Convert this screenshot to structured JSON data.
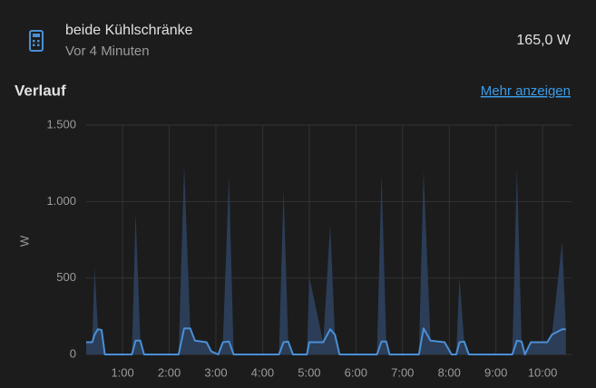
{
  "header": {
    "title": "beide Kühlschränke",
    "subtitle": "Vor 4 Minuten",
    "state": "165,0 W"
  },
  "history": {
    "title": "Verlauf",
    "link": "Mehr anzeigen"
  },
  "chart_data": {
    "type": "line",
    "ylabel": "W",
    "x": [
      0.22,
      0.35,
      0.4,
      0.47,
      0.55,
      0.62,
      1.2,
      1.28,
      1.38,
      1.46,
      2.2,
      2.32,
      2.45,
      2.55,
      2.8,
      2.9,
      3.05,
      3.15,
      3.28,
      3.38,
      4.35,
      4.45,
      4.55,
      4.65,
      4.95,
      5.0,
      5.3,
      5.45,
      5.55,
      5.65,
      6.45,
      6.55,
      6.65,
      6.72,
      7.35,
      7.45,
      7.6,
      7.9,
      8.05,
      8.15,
      8.22,
      8.32,
      8.42,
      9.35,
      9.45,
      9.55,
      9.62,
      9.75,
      10.1,
      10.2,
      10.42,
      10.5
    ],
    "series": [
      {
        "color": "#2b3d57",
        "fill": true,
        "values": [
          80,
          90,
          570,
          170,
          160,
          0,
          0,
          930,
          90,
          0,
          0,
          1240,
          170,
          90,
          80,
          20,
          0,
          80,
          1170,
          0,
          0,
          1080,
          85,
          0,
          0,
          510,
          80,
          850,
          130,
          0,
          0,
          1180,
          85,
          0,
          0,
          1200,
          90,
          80,
          0,
          0,
          500,
          85,
          0,
          0,
          1220,
          85,
          0,
          80,
          80,
          130,
          740,
          165
        ]
      },
      {
        "color": "#4a8fd6",
        "values": [
          80,
          80,
          130,
          165,
          160,
          0,
          0,
          90,
          90,
          0,
          0,
          170,
          170,
          90,
          80,
          20,
          0,
          80,
          85,
          0,
          0,
          80,
          85,
          0,
          0,
          80,
          80,
          165,
          130,
          0,
          0,
          85,
          85,
          0,
          0,
          170,
          90,
          80,
          0,
          0,
          80,
          85,
          0,
          0,
          90,
          85,
          0,
          80,
          80,
          130,
          165,
          165
        ]
      }
    ],
    "xlim": [
      0.22,
      10.62
    ],
    "xticks": [
      {
        "value": 1,
        "label": "1:00"
      },
      {
        "value": 2,
        "label": "2:00"
      },
      {
        "value": 3,
        "label": "3:00"
      },
      {
        "value": 4,
        "label": "4:00"
      },
      {
        "value": 5,
        "label": "5:00"
      },
      {
        "value": 6,
        "label": "6:00"
      },
      {
        "value": 7,
        "label": "7:00"
      },
      {
        "value": 8,
        "label": "8:00"
      },
      {
        "value": 9,
        "label": "9:00"
      },
      {
        "value": 10,
        "label": "10:00"
      }
    ],
    "ylim": [
      0,
      1500
    ],
    "yticks": [
      0,
      500,
      {
        "value": 1000,
        "label": "1.000"
      },
      {
        "value": 1500,
        "label": "1.500"
      }
    ],
    "grid": true
  }
}
